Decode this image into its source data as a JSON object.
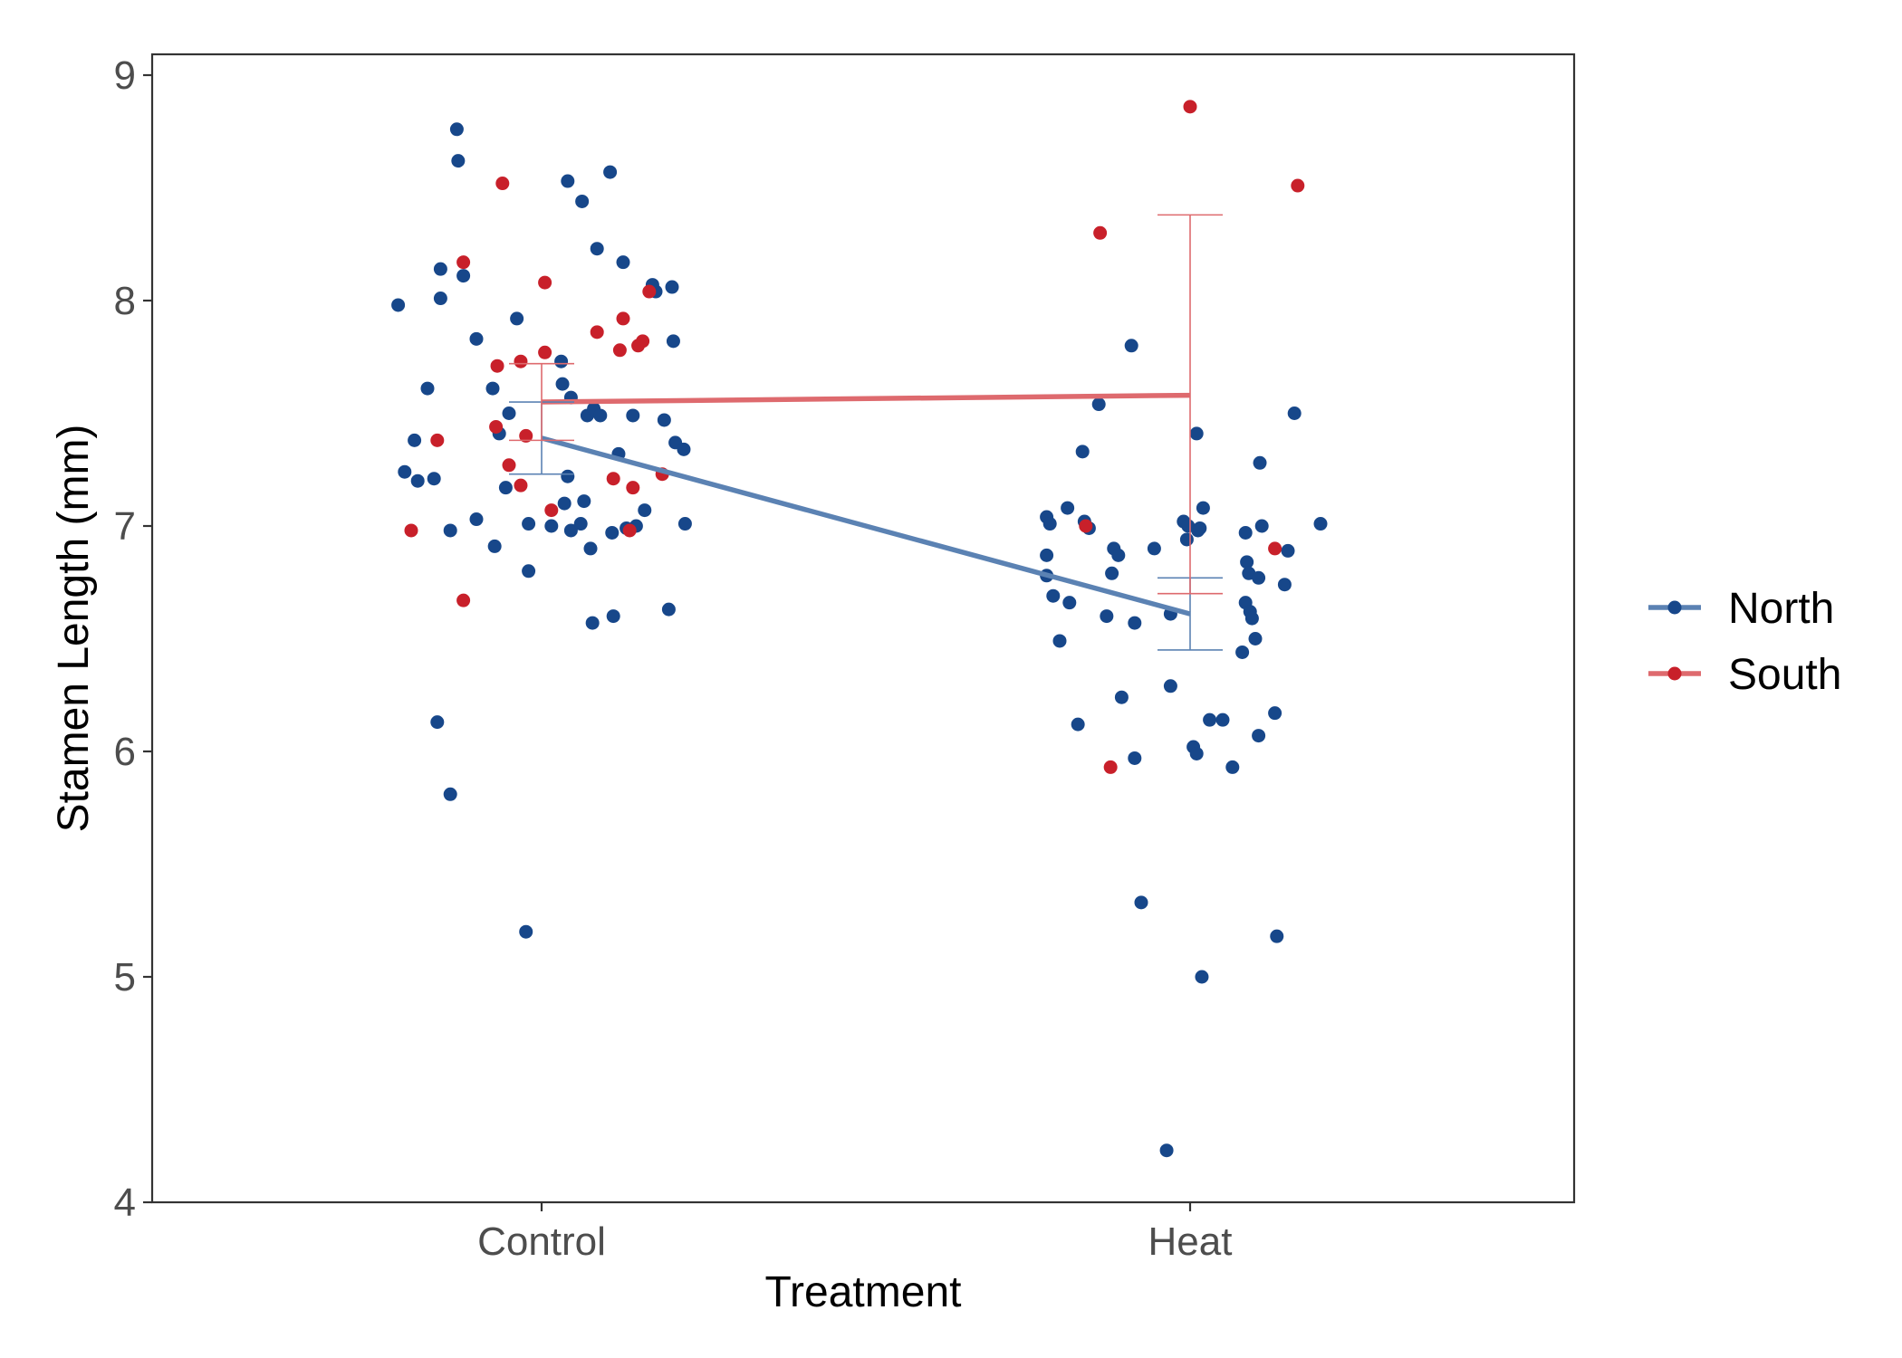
{
  "chart_data": {
    "type": "scatter",
    "xlabel": "Treatment",
    "ylabel": "Stamen Length (mm)",
    "categories": [
      "Control",
      "Heat"
    ],
    "ylim": [
      4,
      9
    ],
    "y_ticks": [
      "4",
      "5",
      "6",
      "7",
      "8",
      "9"
    ],
    "grid": false,
    "legend_position": "right",
    "series": [
      {
        "name": "North",
        "color": "#17478a",
        "line_color": "#5b82b3",
        "means": [
          7.39,
          6.61
        ],
        "error_low": [
          7.23,
          6.45
        ],
        "error_high": [
          7.55,
          6.77
        ],
        "points": {
          "Control": [
            [
              -0.22,
              7.98
            ],
            [
              -0.21,
              7.24
            ],
            [
              -0.195,
              7.38
            ],
            [
              -0.19,
              7.2
            ],
            [
              -0.175,
              7.61
            ],
            [
              -0.165,
              7.21
            ],
            [
              -0.16,
              6.13
            ],
            [
              -0.155,
              8.01
            ],
            [
              -0.155,
              8.14
            ],
            [
              -0.14,
              6.98
            ],
            [
              -0.14,
              5.81
            ],
            [
              -0.13,
              8.76
            ],
            [
              -0.128,
              8.62
            ],
            [
              -0.12,
              8.11
            ],
            [
              -0.1,
              7.83
            ],
            [
              -0.1,
              7.03
            ],
            [
              -0.075,
              7.61
            ],
            [
              -0.072,
              6.91
            ],
            [
              -0.065,
              7.41
            ],
            [
              -0.055,
              7.17
            ],
            [
              -0.05,
              7.5
            ],
            [
              -0.038,
              7.92
            ],
            [
              -0.024,
              5.2
            ],
            [
              -0.02,
              7.01
            ],
            [
              -0.02,
              6.8
            ],
            [
              0.015,
              7.0
            ],
            [
              0.03,
              7.73
            ],
            [
              0.032,
              7.63
            ],
            [
              0.035,
              7.1
            ],
            [
              0.04,
              8.53
            ],
            [
              0.04,
              7.22
            ],
            [
              0.045,
              6.98
            ],
            [
              0.045,
              7.57
            ],
            [
              0.06,
              7.01
            ],
            [
              0.062,
              8.44
            ],
            [
              0.065,
              7.11
            ],
            [
              0.07,
              7.49
            ],
            [
              0.075,
              6.9
            ],
            [
              0.078,
              6.57
            ],
            [
              0.08,
              7.52
            ],
            [
              0.085,
              8.23
            ],
            [
              0.09,
              7.49
            ],
            [
              0.105,
              8.57
            ],
            [
              0.108,
              6.97
            ],
            [
              0.11,
              6.6
            ],
            [
              0.118,
              7.32
            ],
            [
              0.125,
              8.17
            ],
            [
              0.13,
              6.99
            ],
            [
              0.14,
              7.49
            ],
            [
              0.145,
              7.0
            ],
            [
              0.158,
              7.07
            ],
            [
              0.17,
              8.07
            ],
            [
              0.175,
              8.04
            ],
            [
              0.188,
              7.47
            ],
            [
              0.195,
              6.63
            ],
            [
              0.2,
              8.06
            ],
            [
              0.202,
              7.82
            ],
            [
              0.205,
              7.37
            ],
            [
              0.218,
              7.34
            ],
            [
              0.22,
              7.01
            ]
          ],
          "Heat": [
            [
              -0.22,
              7.04
            ],
            [
              -0.22,
              6.87
            ],
            [
              -0.22,
              6.78
            ],
            [
              -0.215,
              7.01
            ],
            [
              -0.21,
              6.69
            ],
            [
              -0.2,
              6.49
            ],
            [
              -0.188,
              7.08
            ],
            [
              -0.185,
              6.66
            ],
            [
              -0.172,
              6.12
            ],
            [
              -0.165,
              7.33
            ],
            [
              -0.162,
              7.02
            ],
            [
              -0.155,
              6.99
            ],
            [
              -0.14,
              7.54
            ],
            [
              -0.128,
              6.6
            ],
            [
              -0.12,
              6.79
            ],
            [
              -0.117,
              6.9
            ],
            [
              -0.11,
              6.87
            ],
            [
              -0.105,
              6.24
            ],
            [
              -0.09,
              7.8
            ],
            [
              -0.085,
              6.57
            ],
            [
              -0.085,
              5.97
            ],
            [
              -0.075,
              5.33
            ],
            [
              -0.055,
              6.9
            ],
            [
              -0.03,
              6.29
            ],
            [
              -0.03,
              6.61
            ],
            [
              -0.036,
              4.23
            ],
            [
              -0.01,
              7.02
            ],
            [
              -0.005,
              6.94
            ],
            [
              -0.003,
              7.0
            ],
            [
              0.005,
              6.02
            ],
            [
              0.01,
              5.99
            ],
            [
              0.01,
              7.41
            ],
            [
              0.012,
              6.98
            ],
            [
              0.015,
              6.99
            ],
            [
              0.018,
              5.0
            ],
            [
              0.02,
              7.08
            ],
            [
              0.03,
              6.14
            ],
            [
              0.05,
              6.14
            ],
            [
              0.065,
              5.93
            ],
            [
              0.08,
              6.44
            ],
            [
              0.085,
              6.97
            ],
            [
              0.085,
              6.66
            ],
            [
              0.087,
              6.84
            ],
            [
              0.09,
              6.79
            ],
            [
              0.092,
              6.62
            ],
            [
              0.095,
              6.59
            ],
            [
              0.1,
              6.5
            ],
            [
              0.105,
              6.77
            ],
            [
              0.105,
              6.07
            ],
            [
              0.107,
              7.28
            ],
            [
              0.11,
              7.0
            ],
            [
              0.13,
              6.17
            ],
            [
              0.133,
              5.18
            ],
            [
              0.145,
              6.74
            ],
            [
              0.15,
              6.89
            ],
            [
              0.16,
              7.5
            ],
            [
              0.2,
              7.01
            ]
          ]
        }
      },
      {
        "name": "South",
        "color": "#c8202a",
        "line_color": "#de6a6e",
        "means": [
          7.55,
          7.58
        ],
        "error_low": [
          7.38,
          6.7
        ],
        "error_high": [
          7.72,
          8.38
        ],
        "points": {
          "Control": [
            [
              -0.2,
              6.98
            ],
            [
              -0.16,
              7.38
            ],
            [
              -0.12,
              8.17
            ],
            [
              -0.12,
              6.67
            ],
            [
              -0.07,
              7.44
            ],
            [
              -0.068,
              7.71
            ],
            [
              -0.06,
              8.52
            ],
            [
              -0.05,
              7.27
            ],
            [
              -0.032,
              7.73
            ],
            [
              -0.032,
              7.18
            ],
            [
              -0.024,
              7.4
            ],
            [
              0.005,
              7.77
            ],
            [
              0.005,
              8.08
            ],
            [
              0.015,
              7.07
            ],
            [
              0.085,
              7.86
            ],
            [
              0.11,
              7.21
            ],
            [
              0.12,
              7.78
            ],
            [
              0.125,
              7.92
            ],
            [
              0.135,
              6.98
            ],
            [
              0.14,
              7.17
            ],
            [
              0.148,
              7.8
            ],
            [
              0.155,
              7.82
            ],
            [
              0.165,
              8.04
            ],
            [
              0.185,
              7.23
            ]
          ],
          "Heat": [
            [
              -0.16,
              7.0
            ],
            [
              -0.138,
              8.3
            ],
            [
              -0.122,
              5.93
            ],
            [
              0.0,
              8.86
            ],
            [
              0.13,
              6.9
            ],
            [
              0.165,
              8.51
            ]
          ]
        }
      }
    ]
  }
}
